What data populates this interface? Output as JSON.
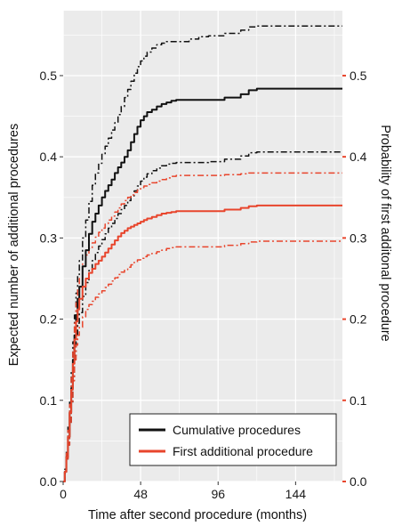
{
  "chart_data": {
    "type": "line",
    "xlabel": "Time after second procedure (months)",
    "ylabel_left": "Expected number of additional procedures",
    "ylabel_right": "Probability of first additonal procedure",
    "xlim": [
      0,
      173
    ],
    "ylim": [
      0,
      0.58
    ],
    "x_ticks": [
      0,
      48,
      96,
      144
    ],
    "x_tick_labels": [
      "0",
      "48",
      "96",
      "144"
    ],
    "y_ticks_left": [
      0.0,
      0.1,
      0.2,
      0.3,
      0.4,
      0.5
    ],
    "y_tick_labels_left": [
      "0.0",
      "0.1",
      "0.2",
      "0.3",
      "0.4",
      "0.5"
    ],
    "y_ticks_right": [
      0.0,
      0.1,
      0.2,
      0.3,
      0.4,
      0.5
    ],
    "y_tick_labels_right": [
      "0.0",
      "0.1",
      "0.2",
      "0.3",
      "0.4",
      "0.5"
    ],
    "grid": true,
    "legend_position": "bottom-right",
    "colors": {
      "cumulative": "#111111",
      "first": "#e8452c",
      "panel": "#ebebeb",
      "grid": "#ffffff"
    },
    "series": [
      {
        "name": "Cumulative procedures",
        "legend": true,
        "style": "solid",
        "color_key": "cumulative",
        "x": [
          0,
          1,
          2,
          3,
          4,
          5,
          6,
          7,
          8,
          9,
          10,
          12,
          14,
          16,
          18,
          20,
          22,
          24,
          26,
          28,
          30,
          32,
          34,
          36,
          38,
          40,
          42,
          44,
          46,
          48,
          50,
          52,
          55,
          58,
          61,
          64,
          67,
          70,
          74,
          78,
          84,
          90,
          100,
          110,
          115,
          120,
          173
        ],
        "values": [
          0.0,
          0.012,
          0.03,
          0.055,
          0.085,
          0.115,
          0.15,
          0.18,
          0.205,
          0.225,
          0.24,
          0.265,
          0.285,
          0.305,
          0.32,
          0.33,
          0.34,
          0.35,
          0.358,
          0.365,
          0.372,
          0.38,
          0.387,
          0.393,
          0.4,
          0.408,
          0.418,
          0.428,
          0.437,
          0.445,
          0.45,
          0.455,
          0.458,
          0.462,
          0.465,
          0.467,
          0.469,
          0.47,
          0.47,
          0.47,
          0.47,
          0.47,
          0.473,
          0.477,
          0.482,
          0.484,
          0.484
        ]
      },
      {
        "name": "Cumulative upper",
        "legend": false,
        "style": "dashdot",
        "color_key": "cumulative",
        "x": [
          0,
          1,
          2,
          3,
          4,
          5,
          6,
          7,
          8,
          9,
          10,
          12,
          14,
          16,
          18,
          20,
          22,
          24,
          26,
          28,
          30,
          32,
          34,
          36,
          38,
          40,
          42,
          44,
          46,
          48,
          50,
          52,
          55,
          58,
          61,
          64,
          67,
          70,
          74,
          78,
          84,
          90,
          100,
          110,
          115,
          120,
          173
        ],
        "values": [
          0.0,
          0.015,
          0.038,
          0.068,
          0.1,
          0.135,
          0.172,
          0.205,
          0.232,
          0.255,
          0.272,
          0.3,
          0.322,
          0.345,
          0.365,
          0.38,
          0.392,
          0.403,
          0.413,
          0.423,
          0.433,
          0.442,
          0.452,
          0.462,
          0.473,
          0.483,
          0.493,
          0.503,
          0.511,
          0.518,
          0.524,
          0.529,
          0.534,
          0.538,
          0.54,
          0.542,
          0.542,
          0.542,
          0.542,
          0.545,
          0.548,
          0.549,
          0.552,
          0.556,
          0.56,
          0.561,
          0.561
        ]
      },
      {
        "name": "Cumulative lower",
        "legend": false,
        "style": "dashdot",
        "color_key": "cumulative",
        "x": [
          0,
          1,
          2,
          3,
          4,
          5,
          6,
          7,
          8,
          9,
          10,
          12,
          14,
          16,
          18,
          20,
          22,
          24,
          26,
          28,
          30,
          32,
          34,
          36,
          38,
          40,
          42,
          44,
          46,
          48,
          50,
          52,
          55,
          58,
          61,
          64,
          67,
          70,
          74,
          78,
          84,
          90,
          100,
          110,
          115,
          120,
          173
        ],
        "values": [
          0.0,
          0.01,
          0.025,
          0.045,
          0.07,
          0.098,
          0.128,
          0.155,
          0.178,
          0.195,
          0.208,
          0.228,
          0.245,
          0.26,
          0.272,
          0.282,
          0.29,
          0.298,
          0.305,
          0.312,
          0.318,
          0.324,
          0.33,
          0.335,
          0.34,
          0.346,
          0.352,
          0.358,
          0.364,
          0.37,
          0.375,
          0.379,
          0.383,
          0.386,
          0.389,
          0.391,
          0.392,
          0.393,
          0.393,
          0.393,
          0.393,
          0.394,
          0.397,
          0.401,
          0.405,
          0.406,
          0.406
        ]
      },
      {
        "name": "First additional procedure",
        "legend": true,
        "style": "solid",
        "color_key": "first",
        "x": [
          0,
          1,
          2,
          3,
          4,
          5,
          6,
          7,
          8,
          9,
          10,
          12,
          14,
          16,
          18,
          20,
          22,
          24,
          26,
          28,
          30,
          32,
          34,
          36,
          38,
          40,
          42,
          44,
          46,
          48,
          50,
          52,
          55,
          58,
          61,
          64,
          67,
          70,
          74,
          78,
          84,
          90,
          100,
          110,
          115,
          120,
          173
        ],
        "values": [
          0.0,
          0.012,
          0.03,
          0.055,
          0.085,
          0.113,
          0.145,
          0.175,
          0.197,
          0.212,
          0.225,
          0.24,
          0.25,
          0.257,
          0.262,
          0.268,
          0.272,
          0.277,
          0.282,
          0.287,
          0.292,
          0.297,
          0.302,
          0.306,
          0.309,
          0.312,
          0.314,
          0.316,
          0.318,
          0.32,
          0.322,
          0.324,
          0.326,
          0.328,
          0.33,
          0.331,
          0.332,
          0.333,
          0.333,
          0.333,
          0.333,
          0.333,
          0.335,
          0.337,
          0.339,
          0.34,
          0.34
        ]
      },
      {
        "name": "First additional upper",
        "legend": false,
        "style": "dashdot",
        "color_key": "first",
        "x": [
          0,
          1,
          2,
          3,
          4,
          5,
          6,
          7,
          8,
          9,
          10,
          12,
          14,
          16,
          18,
          20,
          22,
          24,
          26,
          28,
          30,
          32,
          34,
          36,
          38,
          40,
          42,
          44,
          46,
          48,
          50,
          52,
          55,
          58,
          61,
          64,
          67,
          70,
          74,
          78,
          84,
          90,
          100,
          110,
          115,
          120,
          173
        ],
        "values": [
          0.0,
          0.014,
          0.035,
          0.063,
          0.095,
          0.128,
          0.163,
          0.195,
          0.22,
          0.237,
          0.25,
          0.268,
          0.279,
          0.287,
          0.294,
          0.301,
          0.307,
          0.312,
          0.317,
          0.322,
          0.327,
          0.332,
          0.337,
          0.342,
          0.346,
          0.35,
          0.353,
          0.356,
          0.359,
          0.362,
          0.364,
          0.366,
          0.368,
          0.37,
          0.372,
          0.374,
          0.376,
          0.377,
          0.377,
          0.377,
          0.377,
          0.377,
          0.378,
          0.379,
          0.38,
          0.38,
          0.38
        ]
      },
      {
        "name": "First additional lower",
        "legend": false,
        "style": "dashdot",
        "color_key": "first",
        "x": [
          0,
          1,
          2,
          3,
          4,
          5,
          6,
          7,
          8,
          9,
          10,
          12,
          14,
          16,
          18,
          20,
          22,
          24,
          26,
          28,
          30,
          32,
          34,
          36,
          38,
          40,
          42,
          44,
          46,
          48,
          50,
          52,
          55,
          58,
          61,
          64,
          67,
          70,
          74,
          78,
          84,
          90,
          100,
          110,
          115,
          120,
          173
        ],
        "values": [
          0.0,
          0.01,
          0.025,
          0.045,
          0.07,
          0.096,
          0.124,
          0.15,
          0.168,
          0.18,
          0.19,
          0.203,
          0.212,
          0.218,
          0.222,
          0.227,
          0.231,
          0.235,
          0.239,
          0.243,
          0.247,
          0.251,
          0.255,
          0.258,
          0.261,
          0.264,
          0.267,
          0.27,
          0.273,
          0.275,
          0.277,
          0.279,
          0.281,
          0.283,
          0.285,
          0.287,
          0.288,
          0.289,
          0.289,
          0.289,
          0.289,
          0.289,
          0.291,
          0.293,
          0.295,
          0.296,
          0.296
        ]
      }
    ]
  }
}
